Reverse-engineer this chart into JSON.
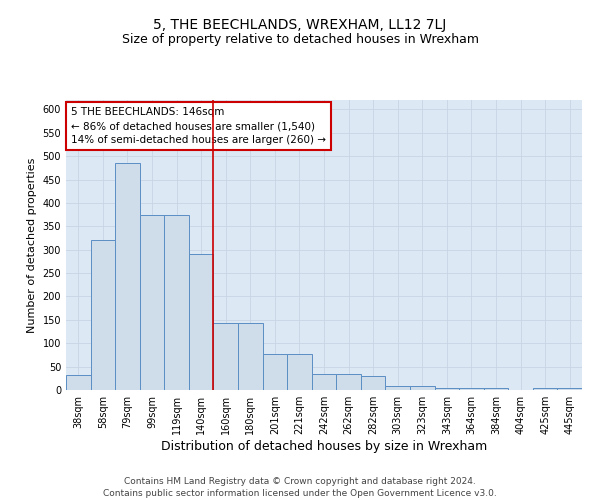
{
  "title": "5, THE BEECHLANDS, WREXHAM, LL12 7LJ",
  "subtitle": "Size of property relative to detached houses in Wrexham",
  "xlabel": "Distribution of detached houses by size in Wrexham",
  "ylabel": "Number of detached properties",
  "categories": [
    "38sqm",
    "58sqm",
    "79sqm",
    "99sqm",
    "119sqm",
    "140sqm",
    "160sqm",
    "180sqm",
    "201sqm",
    "221sqm",
    "242sqm",
    "262sqm",
    "282sqm",
    "303sqm",
    "323sqm",
    "343sqm",
    "364sqm",
    "384sqm",
    "404sqm",
    "425sqm",
    "445sqm"
  ],
  "values": [
    32,
    320,
    485,
    375,
    375,
    290,
    143,
    143,
    76,
    76,
    35,
    35,
    30,
    8,
    8,
    5,
    5,
    5,
    0,
    5,
    5
  ],
  "bar_color": "#cfdcea",
  "bar_edge_color": "#5b8ec4",
  "vline_color": "#cc0000",
  "annotation_text": "5 THE BEECHLANDS: 146sqm\n← 86% of detached houses are smaller (1,540)\n14% of semi-detached houses are larger (260) →",
  "annotation_box_edge_color": "#cc0000",
  "annotation_box_face_color": "#ffffff",
  "grid_color": "#c8d4e4",
  "background_color": "#dce8f4",
  "ylim": [
    0,
    620
  ],
  "yticks": [
    0,
    50,
    100,
    150,
    200,
    250,
    300,
    350,
    400,
    450,
    500,
    550,
    600
  ],
  "footnote": "Contains HM Land Registry data © Crown copyright and database right 2024.\nContains public sector information licensed under the Open Government Licence v3.0.",
  "title_fontsize": 10,
  "subtitle_fontsize": 9,
  "xlabel_fontsize": 9,
  "ylabel_fontsize": 8,
  "tick_fontsize": 7,
  "annotation_fontsize": 7.5,
  "footnote_fontsize": 6.5
}
